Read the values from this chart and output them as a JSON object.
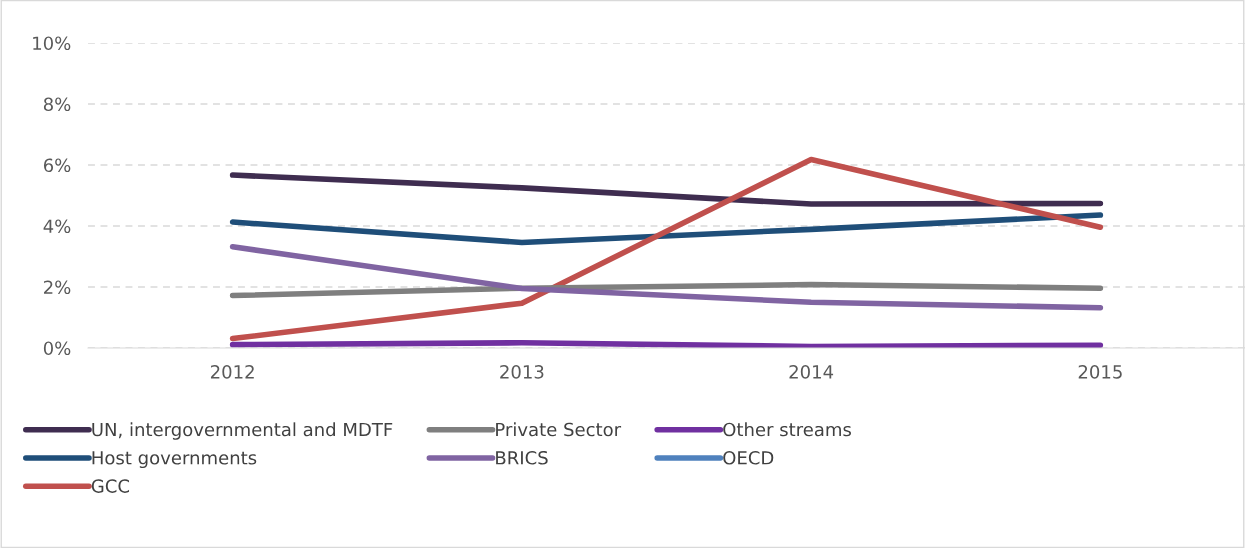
{
  "chart_data": {
    "type": "line",
    "categories": [
      "2012",
      "2013",
      "2014",
      "2015"
    ],
    "ylim": [
      0,
      10
    ],
    "yticks": [
      {
        "value": 0,
        "label": "0%"
      },
      {
        "value": 2,
        "label": "2%"
      },
      {
        "value": 4,
        "label": "4%"
      },
      {
        "value": 6,
        "label": "6%"
      },
      {
        "value": 8,
        "label": "8%"
      },
      {
        "value": 10,
        "label": "10%"
      }
    ],
    "grid": "y",
    "legend": "bottom",
    "marker": "none",
    "line_style": "solid",
    "series": [
      {
        "name": "UN, intergovernmental and MDTF",
        "color": "#3f2d50",
        "values": [
          5.67,
          5.25,
          4.72,
          4.74
        ]
      },
      {
        "name": "Host governments",
        "color": "#1f4e79",
        "values": [
          4.13,
          3.46,
          3.89,
          4.36
        ]
      },
      {
        "name": "GCC",
        "color": "#c0504d",
        "values": [
          0.31,
          1.47,
          6.18,
          3.96
        ]
      },
      {
        "name": "Private Sector",
        "color": "#7f7f7f",
        "values": [
          1.72,
          1.96,
          2.08,
          1.96
        ]
      },
      {
        "name": "BRICS",
        "color": "#8064a2",
        "values": [
          3.32,
          1.95,
          1.5,
          1.32
        ]
      },
      {
        "name": "Other streams",
        "color": "#7030a0",
        "values": [
          0.11,
          0.17,
          0.05,
          0.09
        ]
      },
      {
        "name": "OECD",
        "color": "#4f81bd",
        "values": [
          null,
          null,
          null,
          null
        ]
      }
    ]
  }
}
